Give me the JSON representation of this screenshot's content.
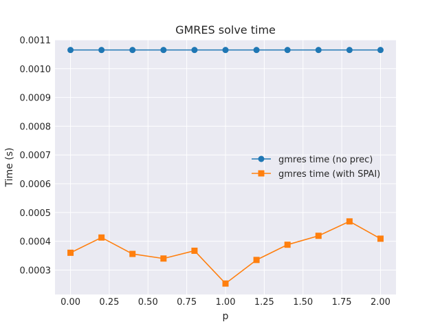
{
  "chart_data": {
    "type": "line",
    "title": "GMRES solve time",
    "xlabel": "p",
    "ylabel": "Time (s)",
    "x": [
      0.0,
      0.2,
      0.4,
      0.6,
      0.8,
      1.0,
      1.2,
      1.4,
      1.6,
      1.8,
      2.0
    ],
    "xlim": [
      -0.1,
      2.1
    ],
    "ylim": [
      0.000215,
      0.0011
    ],
    "x_ticks": [
      0.0,
      0.25,
      0.5,
      0.75,
      1.0,
      1.25,
      1.5,
      1.75,
      2.0
    ],
    "x_tick_labels": [
      "0.00",
      "0.25",
      "0.50",
      "0.75",
      "1.00",
      "1.25",
      "1.50",
      "1.75",
      "2.00"
    ],
    "y_ticks": [
      0.0003,
      0.0004,
      0.0005,
      0.0006,
      0.0007,
      0.0008,
      0.0009,
      0.001,
      0.0011
    ],
    "y_tick_labels": [
      "0.0003",
      "0.0004",
      "0.0005",
      "0.0006",
      "0.0007",
      "0.0008",
      "0.0009",
      "0.0010",
      "0.0011"
    ],
    "grid": true,
    "legend_position": "center-right",
    "series": [
      {
        "name": "gmres time (no prec)",
        "color": "#1f77b4",
        "marker": "circle",
        "values": [
          0.001065,
          0.001065,
          0.001065,
          0.001065,
          0.001065,
          0.001065,
          0.001065,
          0.001065,
          0.001065,
          0.001065,
          0.001065
        ]
      },
      {
        "name": "gmres time (with SPAI)",
        "color": "#ff7f0e",
        "marker": "square",
        "values": [
          0.00036,
          0.000413,
          0.000356,
          0.00034,
          0.000367,
          0.000253,
          0.000335,
          0.000388,
          0.000419,
          0.000469,
          0.000409
        ]
      }
    ]
  },
  "style": {
    "plot_background": "#eaeaf2",
    "grid_color": "#ffffff"
  }
}
